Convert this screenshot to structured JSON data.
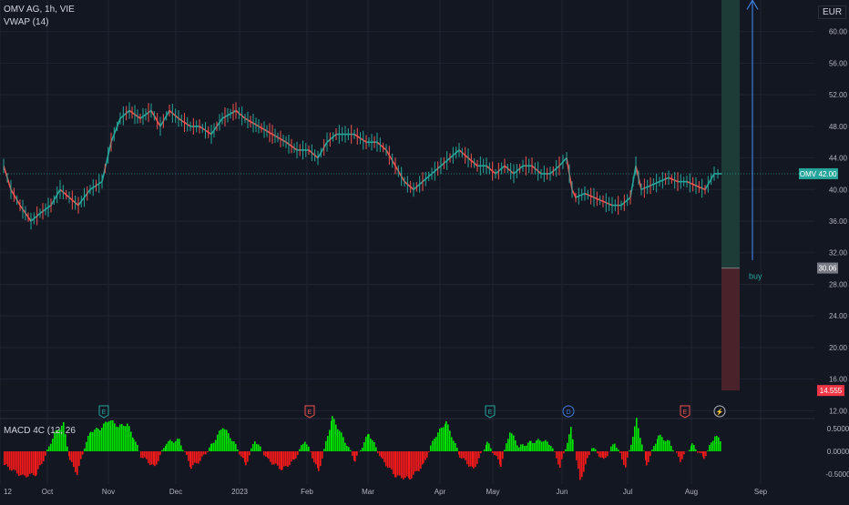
{
  "legend": {
    "symbol": "OMV AG, 1h, VIE",
    "indicator": "VWAP (14)",
    "macd_label": "MACD 4C (12, 26"
  },
  "currency": "EUR",
  "badges": {
    "price_badge_symbol": "OMV",
    "price_badge_value": "42.00",
    "target_badge": "30.06",
    "stop_badge": "14.555"
  },
  "annotation": {
    "text": "buy"
  },
  "event_markers": [
    "E",
    "E",
    "E",
    "D",
    "E",
    "⚡"
  ],
  "colors": {
    "background": "#131722",
    "grid": "#1f2433",
    "bull": "#26a69a",
    "bear": "#ef5350",
    "macd_up": "#00e600",
    "macd_down": "#ff1a1a",
    "yellow_line": "#f5e64d",
    "arrow": "#3d7dd9",
    "profit_zone": "#1d3b37",
    "loss_zone": "#4a2229",
    "target_badge_bg": "#787b86",
    "stop_badge_bg": "#f23645"
  },
  "chart_data": [
    {
      "type": "line",
      "title": "OMV AG, 1h, VIE",
      "y_ticks": [
        "60.00",
        "56.00",
        "52.00",
        "48.00",
        "44.00",
        "40.00",
        "36.00",
        "32.00",
        "28.00",
        "24.00",
        "20.00",
        "16.00",
        "12.00"
      ],
      "x_ticks": [
        "12",
        "Oct",
        "Nov",
        "Dec",
        "2023",
        "Feb",
        "Mar",
        "Apr",
        "May",
        "Jun",
        "Jul",
        "Aug",
        "Sep"
      ],
      "ylim": [
        11,
        64
      ],
      "current_price": 42.0,
      "horizontal_line": 64.2,
      "position": {
        "entry": 30.06,
        "target": 64.2,
        "stop": 14.555
      },
      "series": [
        {
          "values": [
            [
              0,
              43
            ],
            [
              8,
              40
            ],
            [
              18,
              38
            ],
            [
              30,
              36
            ],
            [
              40,
              37
            ],
            [
              52,
              38
            ],
            [
              62,
              40
            ],
            [
              72,
              39
            ],
            [
              82,
              38
            ],
            [
              95,
              40
            ],
            [
              108,
              41
            ],
            [
              118,
              46
            ],
            [
              128,
              49
            ],
            [
              138,
              50
            ],
            [
              150,
              49
            ],
            [
              162,
              50
            ],
            [
              172,
              48
            ],
            [
              182,
              50
            ],
            [
              192,
              49
            ],
            [
              205,
              48
            ],
            [
              215,
              48
            ],
            [
              228,
              47
            ],
            [
              240,
              49
            ],
            [
              255,
              50
            ],
            [
              265,
              49
            ],
            [
              280,
              48
            ],
            [
              295,
              47
            ],
            [
              310,
              46
            ],
            [
              322,
              45
            ],
            [
              335,
              45
            ],
            [
              345,
              44
            ],
            [
              355,
              46
            ],
            [
              365,
              47
            ],
            [
              375,
              47
            ],
            [
              385,
              47
            ],
            [
              398,
              46
            ],
            [
              410,
              46
            ],
            [
              420,
              45
            ],
            [
              430,
              43
            ],
            [
              440,
              41
            ],
            [
              450,
              40
            ],
            [
              460,
              41
            ],
            [
              470,
              42
            ],
            [
              480,
              43
            ],
            [
              490,
              44
            ],
            [
              500,
              45
            ],
            [
              510,
              44
            ],
            [
              520,
              43
            ],
            [
              530,
              43
            ],
            [
              540,
              42
            ],
            [
              550,
              43
            ],
            [
              560,
              42
            ],
            [
              570,
              43
            ],
            [
              580,
              43
            ],
            [
              590,
              42
            ],
            [
              600,
              42
            ],
            [
              610,
              43
            ],
            [
              618,
              44
            ],
            [
              624,
              40
            ],
            [
              628,
              39
            ],
            [
              638,
              39.5
            ],
            [
              648,
              39
            ],
            [
              658,
              38.5
            ],
            [
              668,
              38
            ],
            [
              678,
              38
            ],
            [
              688,
              39
            ],
            [
              694,
              43
            ],
            [
              700,
              40
            ],
            [
              710,
              40.5
            ],
            [
              720,
              41
            ],
            [
              730,
              41.5
            ],
            [
              740,
              41
            ],
            [
              750,
              41
            ],
            [
              760,
              40.5
            ],
            [
              770,
              40
            ],
            [
              780,
              42
            ],
            [
              788,
              42
            ]
          ]
        }
      ]
    },
    {
      "type": "bar",
      "title": "MACD 4C (12, 26",
      "y_ticks": [
        "0.5000",
        "0.0000",
        "-0.5000"
      ],
      "ylim": [
        -0.72,
        0.72
      ],
      "values": [
        [
          0,
          -0.3
        ],
        [
          20,
          -0.55
        ],
        [
          35,
          -0.5
        ],
        [
          45,
          -0.1
        ],
        [
          55,
          0.4
        ],
        [
          65,
          0.6
        ],
        [
          72,
          -0.2
        ],
        [
          80,
          -0.5
        ],
        [
          88,
          0.1
        ],
        [
          95,
          0.45
        ],
        [
          105,
          0.5
        ],
        [
          115,
          0.7
        ],
        [
          125,
          0.55
        ],
        [
          135,
          0.6
        ],
        [
          142,
          0.3
        ],
        [
          150,
          -0.1
        ],
        [
          165,
          -0.35
        ],
        [
          178,
          0.2
        ],
        [
          192,
          0.25
        ],
        [
          205,
          -0.35
        ],
        [
          215,
          -0.2
        ],
        [
          228,
          0.15
        ],
        [
          240,
          0.55
        ],
        [
          252,
          0.2
        ],
        [
          265,
          -0.3
        ],
        [
          275,
          0.25
        ],
        [
          290,
          -0.2
        ],
        [
          305,
          -0.4
        ],
        [
          318,
          -0.2
        ],
        [
          330,
          0.25
        ],
        [
          345,
          -0.45
        ],
        [
          360,
          0.75
        ],
        [
          372,
          0.3
        ],
        [
          385,
          -0.2
        ],
        [
          400,
          0.4
        ],
        [
          415,
          -0.2
        ],
        [
          430,
          -0.55
        ],
        [
          445,
          -0.6
        ],
        [
          460,
          -0.3
        ],
        [
          472,
          0.3
        ],
        [
          485,
          0.65
        ],
        [
          500,
          -0.1
        ],
        [
          515,
          -0.4
        ],
        [
          530,
          0.2
        ],
        [
          545,
          -0.3
        ],
        [
          555,
          0.45
        ],
        [
          565,
          0.1
        ],
        [
          578,
          0.2
        ],
        [
          590,
          0.25
        ],
        [
          600,
          0.15
        ],
        [
          610,
          -0.35
        ],
        [
          622,
          0.5
        ],
        [
          632,
          -0.65
        ],
        [
          645,
          0.1
        ],
        [
          658,
          -0.2
        ],
        [
          670,
          0.2
        ],
        [
          682,
          -0.35
        ],
        [
          694,
          0.7
        ],
        [
          705,
          -0.3
        ],
        [
          718,
          0.35
        ],
        [
          730,
          0.2
        ],
        [
          742,
          -0.2
        ],
        [
          755,
          0.15
        ],
        [
          768,
          -0.15
        ],
        [
          780,
          0.35
        ],
        [
          788,
          0.2
        ]
      ]
    }
  ]
}
